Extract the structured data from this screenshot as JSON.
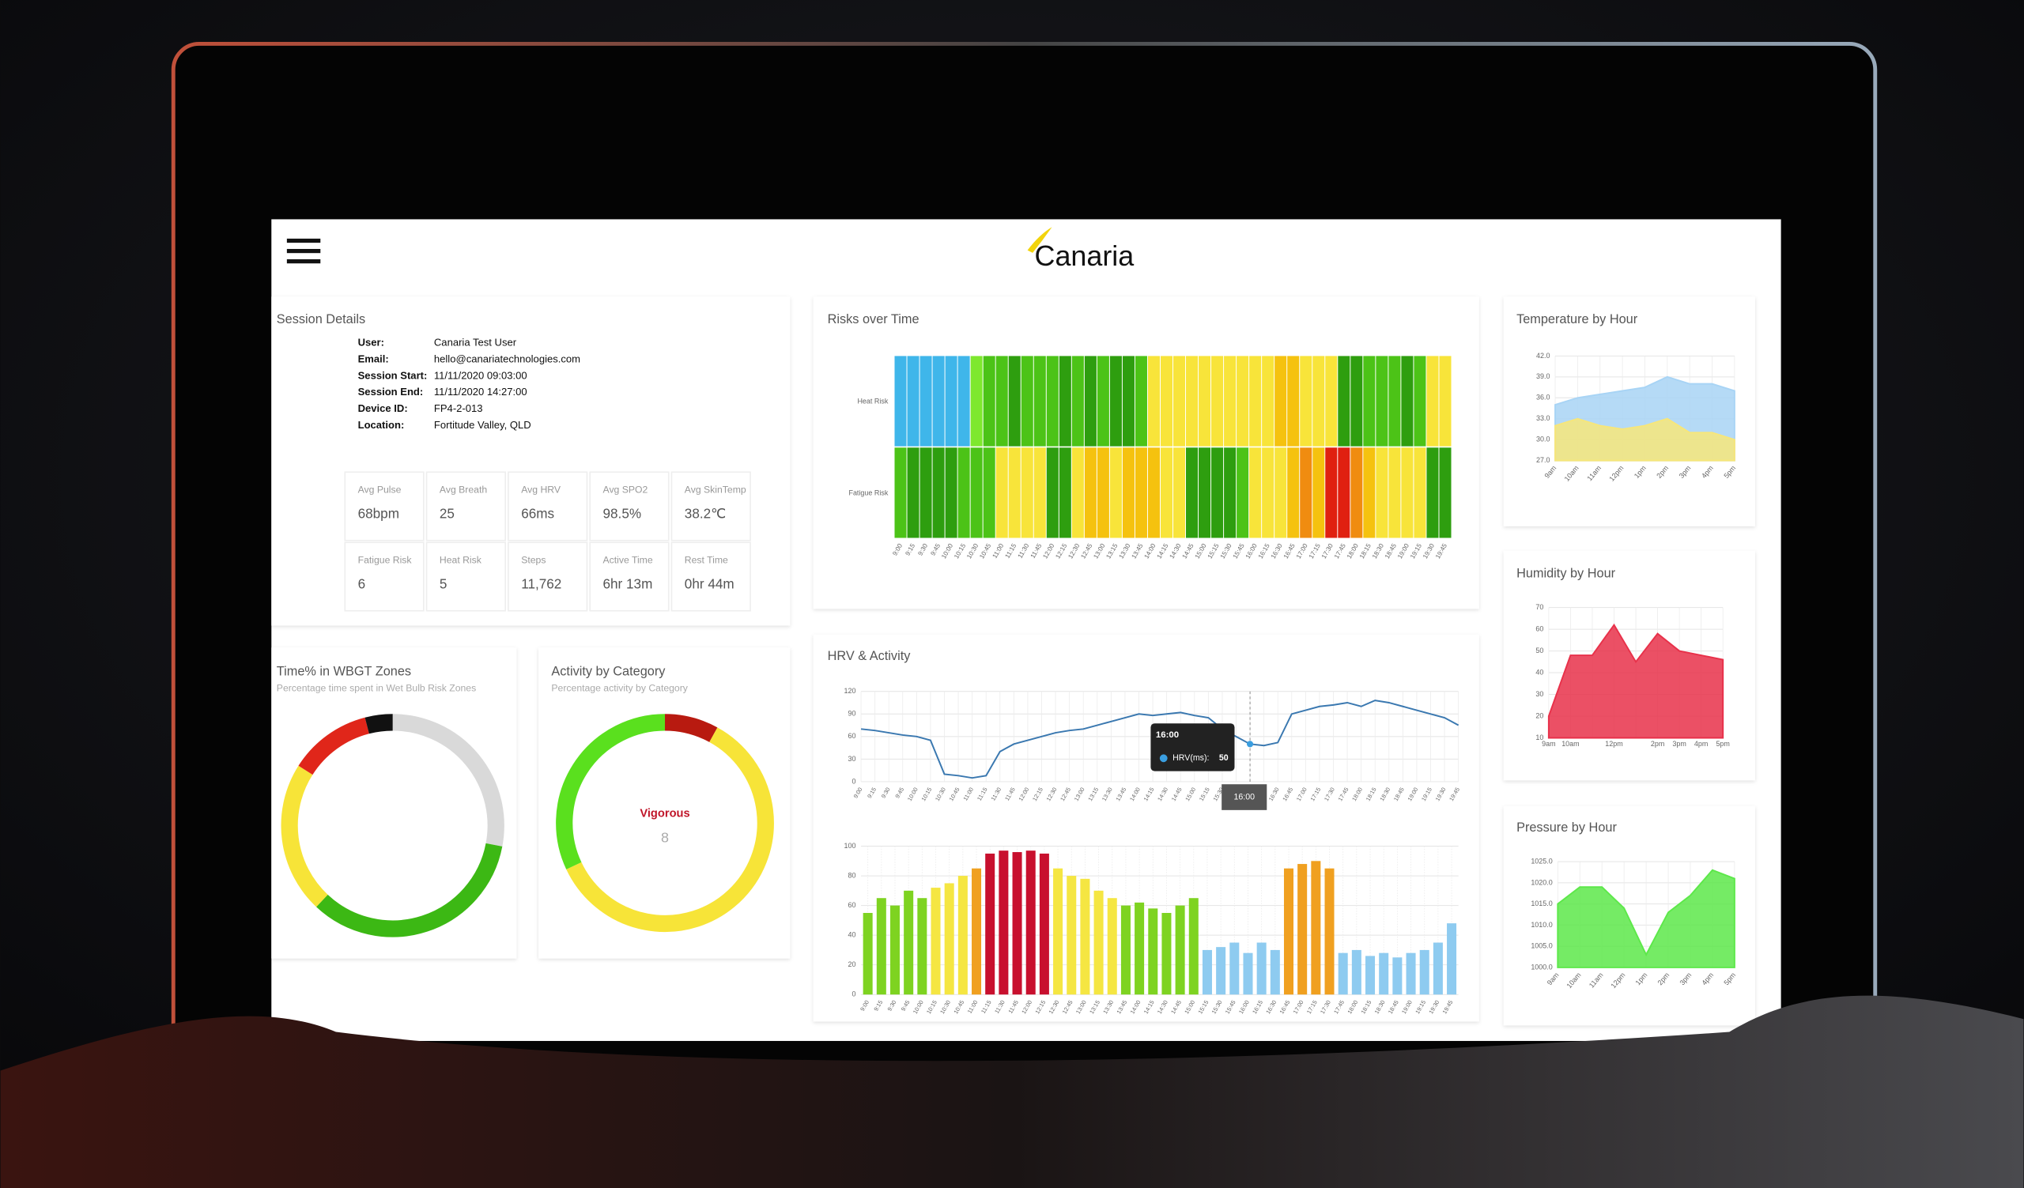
{
  "header": {
    "logo": "Canaria"
  },
  "session": {
    "title": "Session Details",
    "fields": [
      {
        "label": "User:",
        "value": "Canaria Test User"
      },
      {
        "label": "Email:",
        "value": "hello@canariatechnologies.com"
      },
      {
        "label": "Session Start:",
        "value": "11/11/2020 09:03:00"
      },
      {
        "label": "Session End:",
        "value": "11/11/2020 14:27:00"
      },
      {
        "label": "Device ID:",
        "value": "FP4-2-013"
      },
      {
        "label": "Location:",
        "value": "Fortitude Valley, QLD"
      }
    ]
  },
  "stats": [
    {
      "label": "Avg Pulse",
      "value": "68bpm"
    },
    {
      "label": "Avg Breath",
      "value": "25"
    },
    {
      "label": "Avg HRV",
      "value": "66ms"
    },
    {
      "label": "Avg SPO2",
      "value": "98.5%"
    },
    {
      "label": "Avg SkinTemp",
      "value": "38.2℃"
    },
    {
      "label": "Fatigue Risk",
      "value": "6"
    },
    {
      "label": "Heat Risk",
      "value": "5"
    },
    {
      "label": "Steps",
      "value": "11,762"
    },
    {
      "label": "Active Time",
      "value": "6hr 13m"
    },
    {
      "label": "Rest Time",
      "value": "0hr 44m"
    }
  ],
  "chart_data": [
    {
      "type": "pie",
      "title": "Time% in WBGT Zones",
      "subtitle": "Percentage time spent in Wet Bulb Risk Zones",
      "values": [
        28,
        34,
        22,
        12,
        4
      ],
      "colors": [
        "#d9d9d9",
        "#3cb814",
        "#f7e438",
        "#e0261a",
        "#111111"
      ]
    },
    {
      "type": "pie",
      "title": "Activity by Category",
      "subtitle": "Percentage activity by Category",
      "center_label": "Vigorous",
      "values": [
        8,
        60,
        32
      ],
      "colors": [
        "#b81a10",
        "#f7e438",
        "#5ae01e"
      ]
    },
    {
      "type": "heatmap",
      "title": "Risks over Time",
      "rows": [
        "Heat Risk",
        "Fatigue Risk"
      ],
      "categories": [
        "9:00",
        "9:15",
        "9:30",
        "9:45",
        "10:00",
        "10:15",
        "10:30",
        "10:45",
        "11:00",
        "11:15",
        "11:30",
        "11:45",
        "12:00",
        "12:15",
        "12:30",
        "12:45",
        "13:00",
        "13:15",
        "13:30",
        "13:45",
        "14:00",
        "14:15",
        "14:30",
        "14:45",
        "15:00",
        "15:15",
        "15:30",
        "15:45",
        "16:00",
        "16:15",
        "16:30",
        "16:45",
        "17:00",
        "17:15",
        "17:30",
        "17:45",
        "18:00",
        "18:15",
        "18:30",
        "18:45",
        "19:00",
        "19:15",
        "19:30",
        "19:45"
      ],
      "values": [
        [
          0,
          0,
          0,
          0,
          0,
          0,
          1,
          2,
          2,
          3,
          2,
          2,
          2,
          3,
          2,
          3,
          2,
          3,
          3,
          2,
          4,
          4,
          4,
          4,
          4,
          4,
          4,
          4,
          4,
          4,
          5,
          5,
          4,
          4,
          4,
          3,
          3,
          2,
          2,
          2,
          3,
          2,
          4,
          4
        ],
        [
          2,
          3,
          3,
          3,
          3,
          2,
          2,
          2,
          4,
          4,
          4,
          4,
          3,
          3,
          4,
          5,
          5,
          4,
          5,
          5,
          5,
          4,
          4,
          3,
          3,
          3,
          3,
          2,
          4,
          4,
          4,
          5,
          6,
          5,
          7,
          7,
          6,
          5,
          4,
          4,
          4,
          4,
          3,
          3
        ]
      ],
      "colors": [
        "#3fb6ea",
        "#7ee82e",
        "#4cc317",
        "#2e9e0f",
        "#f8e43a",
        "#f5c20f",
        "#f08c10",
        "#e02010"
      ]
    },
    {
      "type": "line",
      "title": "HRV & Activity",
      "color": "#3a78b0",
      "categories": [
        "9:00",
        "9:15",
        "9:30",
        "9:45",
        "10:00",
        "10:15",
        "10:30",
        "10:45",
        "11:00",
        "11:15",
        "11:30",
        "11:45",
        "12:00",
        "12:15",
        "12:30",
        "12:45",
        "13:00",
        "13:15",
        "13:30",
        "13:45",
        "14:00",
        "14:15",
        "14:30",
        "14:45",
        "15:00",
        "15:15",
        "15:30",
        "15:45",
        "16:00",
        "16:15",
        "16:30",
        "16:45",
        "17:00",
        "17:15",
        "17:30",
        "17:45",
        "18:00",
        "18:15",
        "18:30",
        "18:45",
        "19:00",
        "19:15",
        "19:30",
        "19:45"
      ],
      "values": [
        70,
        68,
        65,
        62,
        60,
        55,
        10,
        8,
        5,
        8,
        40,
        50,
        55,
        60,
        65,
        68,
        70,
        75,
        80,
        85,
        90,
        88,
        90,
        92,
        88,
        85,
        70,
        60,
        50,
        48,
        52,
        90,
        95,
        100,
        102,
        105,
        100,
        108,
        105,
        100,
        95,
        90,
        85,
        75
      ],
      "ylim": [
        0,
        120
      ],
      "yticks": [
        0,
        30,
        60,
        90,
        120
      ],
      "grid": true,
      "tooltip": {
        "title": "16:00",
        "label": "HRV(ms):",
        "value": 50,
        "crosshair": "16:00"
      }
    },
    {
      "type": "bar",
      "categories": [
        "9:00",
        "9:15",
        "9:30",
        "9:45",
        "10:00",
        "10:15",
        "10:30",
        "10:45",
        "11:00",
        "11:15",
        "11:30",
        "11:45",
        "12:00",
        "12:15",
        "12:30",
        "12:45",
        "13:00",
        "13:15",
        "13:30",
        "13:45",
        "14:00",
        "14:15",
        "14:30",
        "14:45",
        "15:00",
        "15:15",
        "15:30",
        "15:45",
        "16:00",
        "16:15",
        "16:30",
        "16:45",
        "17:00",
        "17:15",
        "17:30",
        "17:45",
        "18:00",
        "18:15",
        "18:30",
        "18:45",
        "19:00",
        "19:15",
        "19:30",
        "19:45"
      ],
      "values": [
        55,
        65,
        60,
        70,
        65,
        72,
        75,
        80,
        85,
        95,
        97,
        96,
        97,
        95,
        85,
        80,
        78,
        70,
        65,
        60,
        62,
        58,
        55,
        60,
        65,
        30,
        32,
        35,
        28,
        35,
        30,
        85,
        88,
        90,
        85,
        28,
        30,
        26,
        28,
        25,
        28,
        30,
        35,
        48
      ],
      "colors": [
        "#7ed321",
        "#7ed321",
        "#7ed321",
        "#7ed321",
        "#7ed321",
        "#f5e642",
        "#f5e642",
        "#f5e642",
        "#f0a020",
        "#c8102e",
        "#c8102e",
        "#c8102e",
        "#c8102e",
        "#c8102e",
        "#f5e642",
        "#f5e642",
        "#f5e642",
        "#f5e642",
        "#f5e642",
        "#7ed321",
        "#7ed321",
        "#7ed321",
        "#7ed321",
        "#7ed321",
        "#7ed321",
        "#8ecbf0",
        "#8ecbf0",
        "#8ecbf0",
        "#8ecbf0",
        "#8ecbf0",
        "#8ecbf0",
        "#f0a020",
        "#f0a020",
        "#f0a020",
        "#f0a020",
        "#8ecbf0",
        "#8ecbf0",
        "#8ecbf0",
        "#8ecbf0",
        "#8ecbf0",
        "#8ecbf0",
        "#8ecbf0",
        "#8ecbf0",
        "#8ecbf0"
      ],
      "ylim": [
        0,
        100
      ],
      "yticks": [
        0,
        20,
        40,
        60,
        80,
        100
      ],
      "grid": true
    },
    {
      "type": "area",
      "title": "Temperature by Hour",
      "categories": [
        "9am",
        "10am",
        "11am",
        "12pm",
        "1pm",
        "2pm",
        "3pm",
        "4pm",
        "5pm"
      ],
      "series": [
        {
          "color": "#a8d4f5",
          "values": [
            35,
            36,
            36.5,
            37,
            37.5,
            39,
            38,
            38,
            37
          ]
        },
        {
          "color": "#f7e67a",
          "values": [
            32,
            33,
            32,
            31.5,
            32,
            33,
            31,
            31,
            30
          ]
        }
      ],
      "ylim": [
        27,
        42
      ],
      "yticks": [
        {
          "value": 27,
          "label": "27.0"
        },
        {
          "value": 30,
          "label": "30.0"
        },
        {
          "value": 33,
          "label": "33.0"
        },
        {
          "value": 36,
          "label": "36.0"
        },
        {
          "value": 39,
          "label": "39.0"
        },
        {
          "value": 42,
          "label": "42.0"
        }
      ],
      "grid": true
    },
    {
      "type": "area",
      "title": "Humidity by Hour",
      "categories": [
        "9am",
        "10am",
        null,
        "12pm",
        null,
        "2pm",
        "3pm",
        "4pm",
        "5pm"
      ],
      "series": [
        {
          "color": "#e8314a",
          "values": [
            20,
            48,
            48,
            62,
            45,
            58,
            50,
            48,
            46
          ]
        }
      ],
      "ylim": [
        10,
        70
      ],
      "yticks": [
        10,
        20,
        30,
        40,
        50,
        60,
        70
      ],
      "grid": true
    },
    {
      "type": "area",
      "title": "Pressure by Hour",
      "categories": [
        "9am",
        "10am",
        "11am",
        "12pm",
        "1pm",
        "2pm",
        "3pm",
        "4pm",
        "5pm"
      ],
      "series": [
        {
          "color": "#5de84a",
          "values": [
            1015,
            1019,
            1019,
            1014,
            1003,
            1013,
            1017,
            1023,
            1021
          ]
        }
      ],
      "ylim": [
        1000,
        1025
      ],
      "yticks": [
        {
          "value": 1000,
          "label": "1000.0"
        },
        {
          "value": 1005,
          "label": "1005.0"
        },
        {
          "value": 1010,
          "label": "1010.0"
        },
        {
          "value": 1015,
          "label": "1015.0"
        },
        {
          "value": 1020,
          "label": "1020.0"
        },
        {
          "value": 1025,
          "label": "1025.0"
        }
      ],
      "grid": true
    }
  ]
}
